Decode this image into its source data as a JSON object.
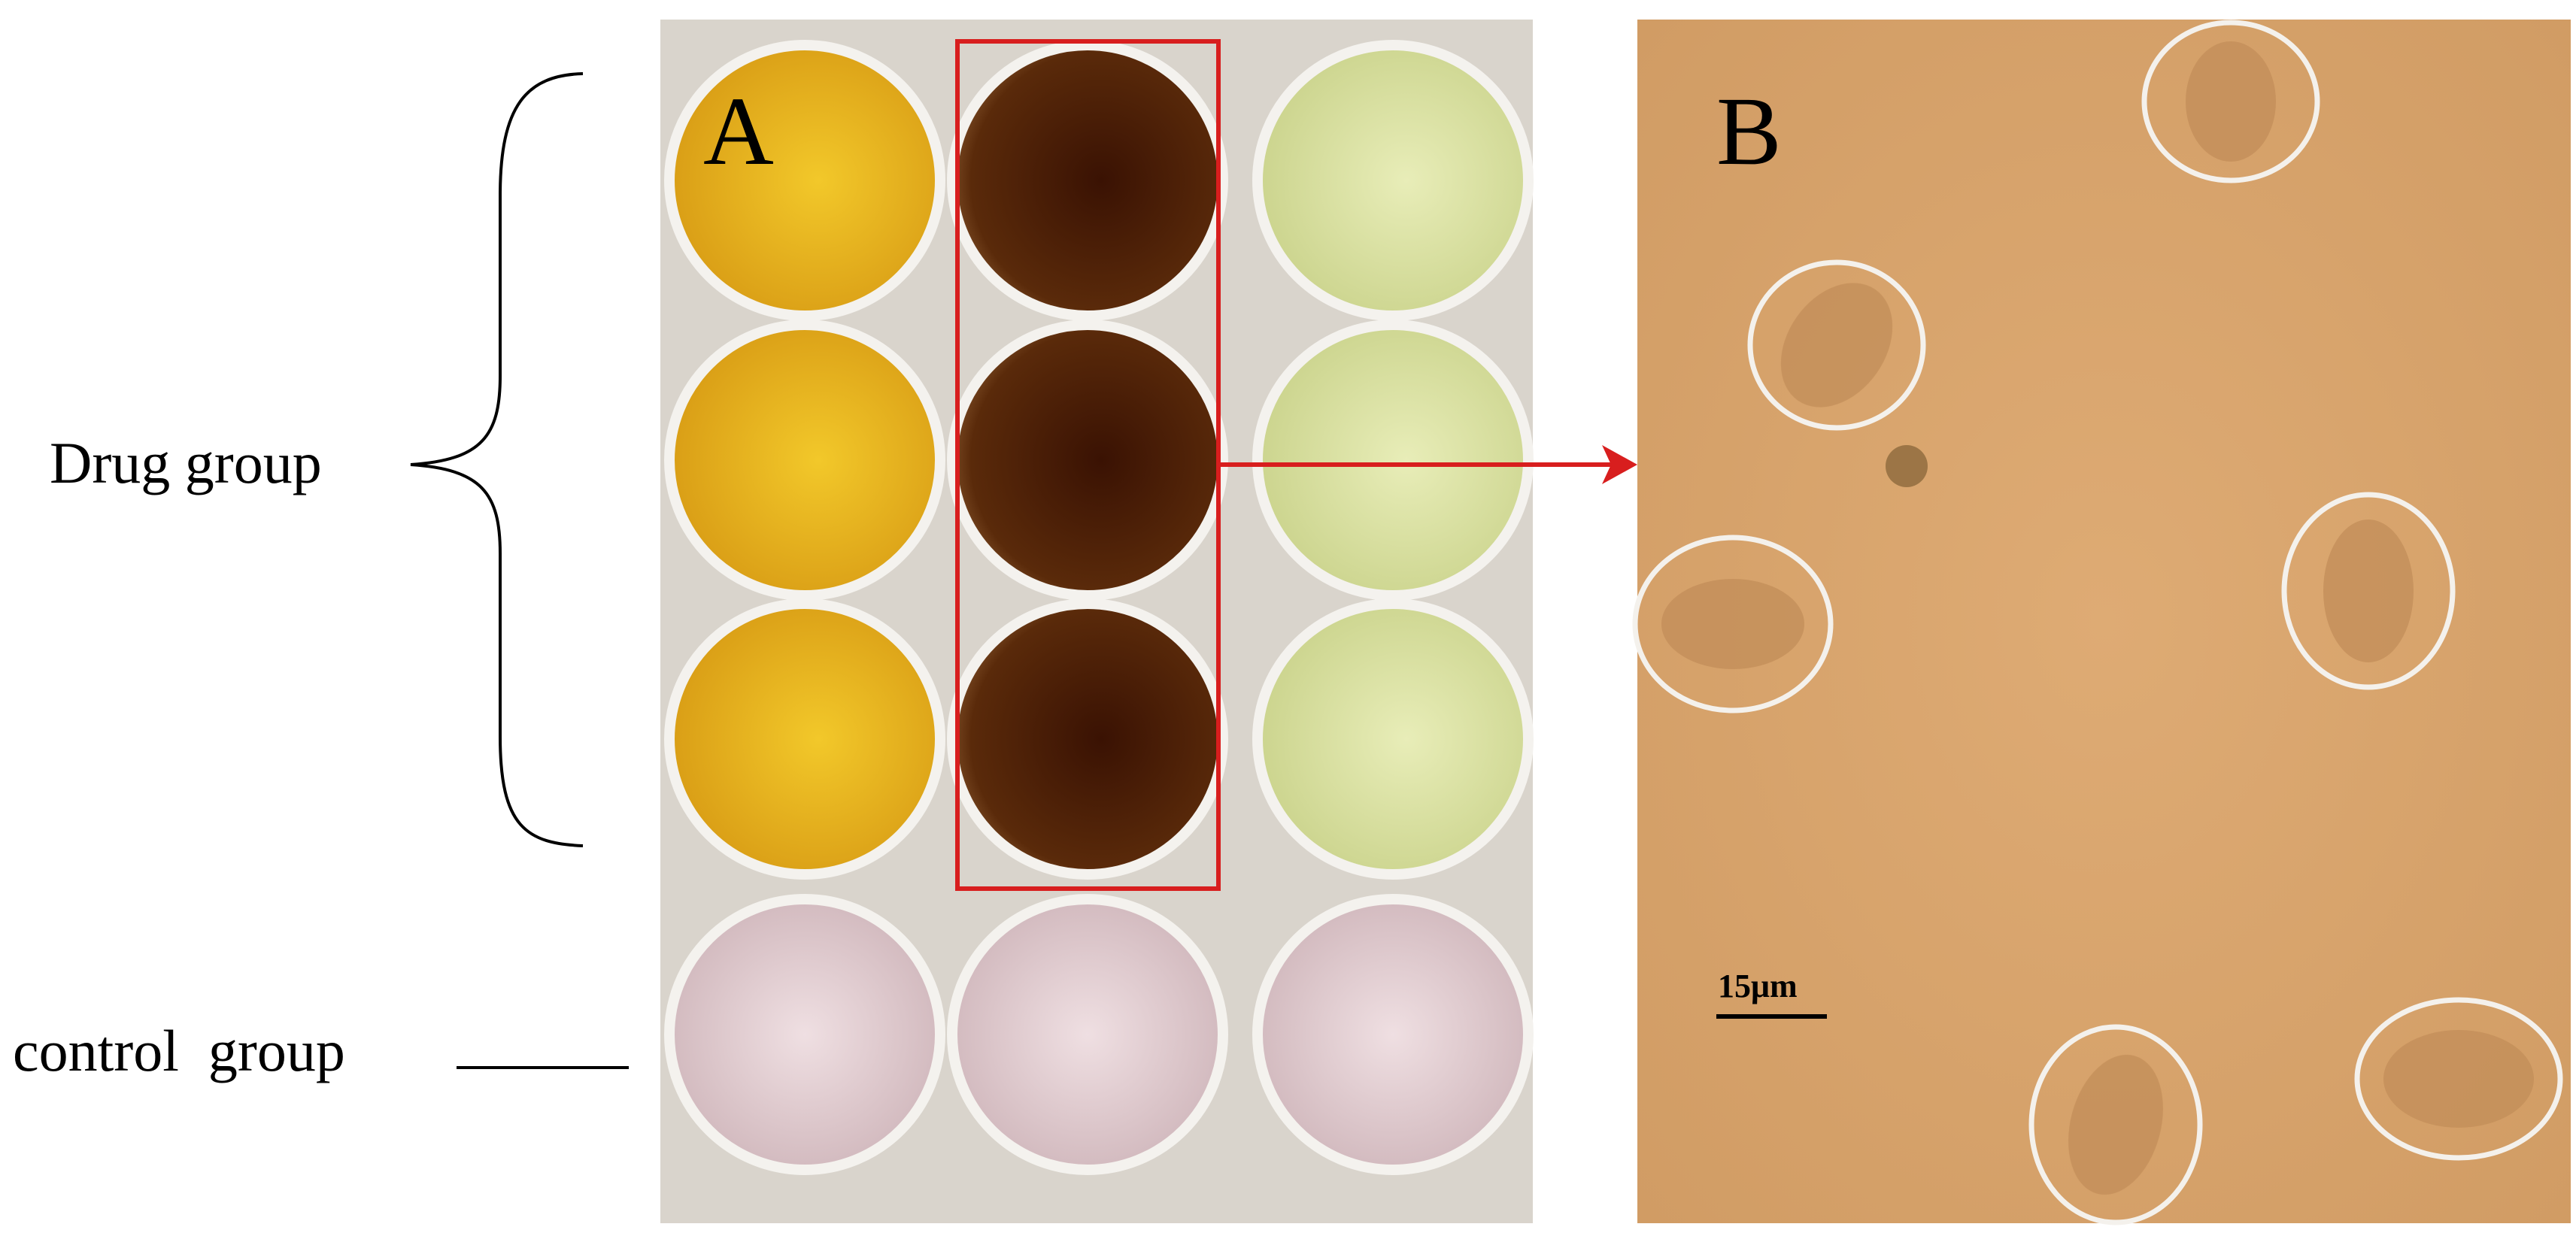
{
  "panel_a": {
    "label": "A",
    "groups": [
      {
        "label": "Drug group"
      },
      {
        "label": "control  group"
      }
    ]
  },
  "panel_b": {
    "label": "B",
    "scale_bar": "15μm"
  }
}
